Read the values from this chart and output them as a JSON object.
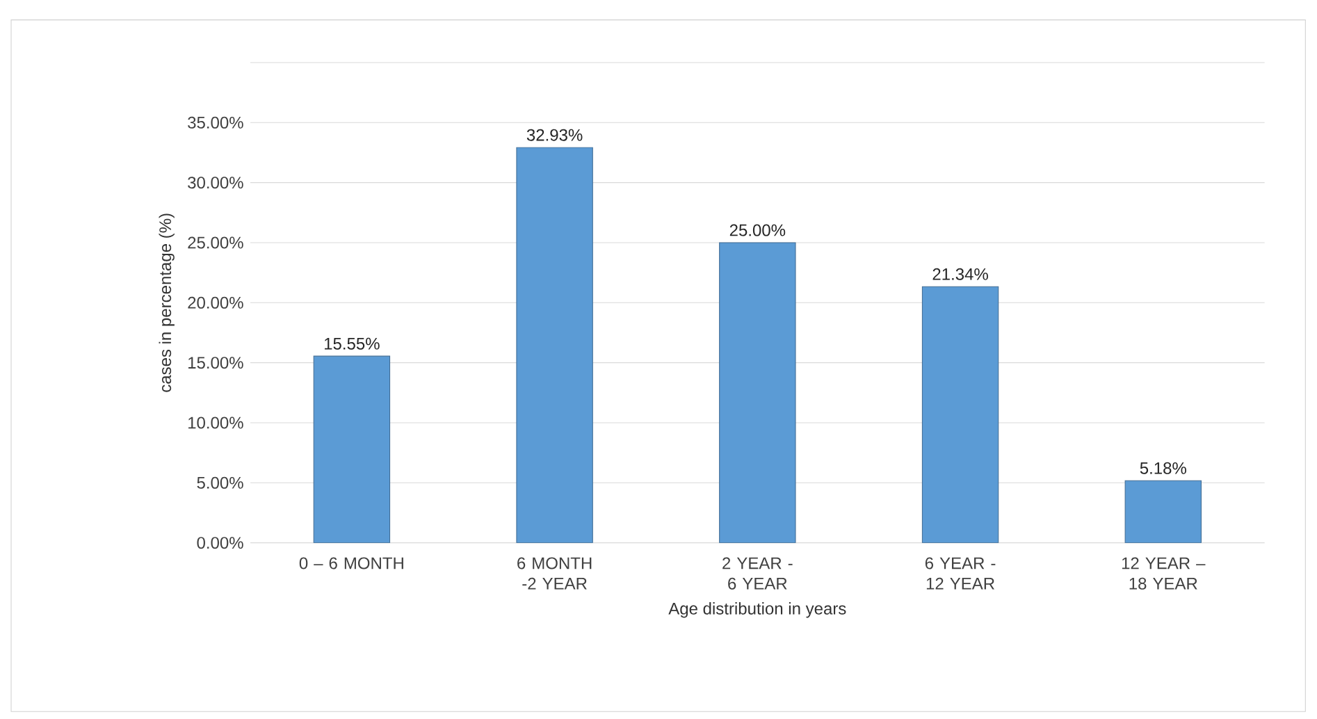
{
  "chart_data": {
    "type": "bar",
    "xlabel": "Age  distribution in years",
    "ylabel": "cases in percentage (%)",
    "categories": [
      "0 – 6 MONTH",
      "6 MONTH -2 YEAR",
      "2 YEAR -  6 YEAR",
      "6 YEAR   - 12 YEAR",
      "12 YEAR – 18 YEAR"
    ],
    "values": [
      15.55,
      32.93,
      25.0,
      21.34,
      5.18
    ],
    "value_labels": [
      "15.55%",
      "32.93%",
      "25.00%",
      "21.34%",
      "5.18%"
    ],
    "color": "#5b9bd5",
    "ylim": [
      0,
      40
    ],
    "yticks": [
      {
        "value": 0,
        "label": "0.00%"
      },
      {
        "value": 5,
        "label": "5.00%"
      },
      {
        "value": 10,
        "label": "10.00%"
      },
      {
        "value": 15,
        "label": "15.00%"
      },
      {
        "value": 20,
        "label": "20.00%"
      },
      {
        "value": 25,
        "label": "25.00%"
      },
      {
        "value": 30,
        "label": "30.00%"
      },
      {
        "value": 35,
        "label": "35.00%"
      },
      {
        "value": 40,
        "label": null
      }
    ],
    "grid": "y"
  }
}
